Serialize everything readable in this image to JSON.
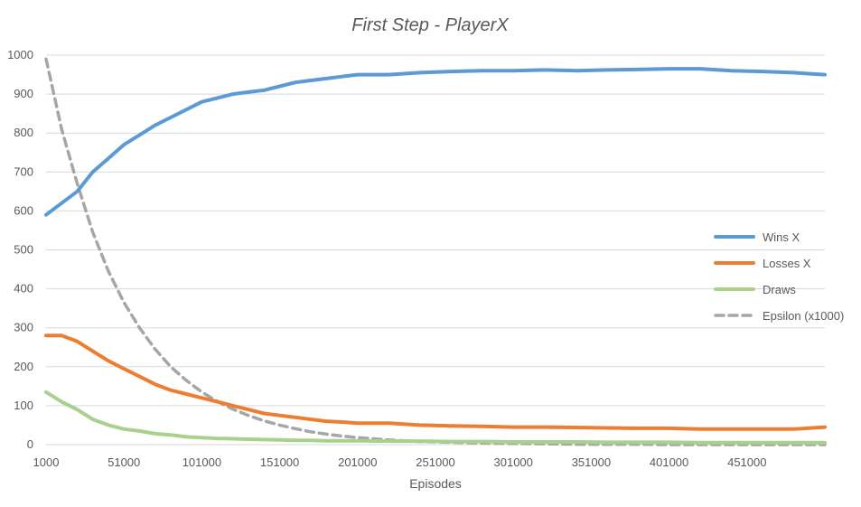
{
  "chart_data": {
    "type": "line",
    "title": "First Step - PlayerX",
    "xlabel": "Episodes",
    "ylabel": "",
    "xlim": [
      1000,
      501000
    ],
    "ylim": [
      0,
      1000
    ],
    "yticks": [
      0,
      100,
      200,
      300,
      400,
      500,
      600,
      700,
      800,
      900,
      1000
    ],
    "xticks": [
      1000,
      51000,
      101000,
      151000,
      201000,
      251000,
      301000,
      351000,
      401000,
      451000
    ],
    "x_tick_labels": [
      "1000",
      "51000",
      "101000",
      "151000",
      "201000",
      "251000",
      "301000",
      "351000",
      "401000",
      "451000"
    ],
    "y_tick_labels": [
      "0",
      "100",
      "200",
      "300",
      "400",
      "500",
      "600",
      "700",
      "800",
      "900",
      "1000"
    ],
    "grid": "horizontal",
    "legend_position": "right",
    "x": [
      1000,
      11000,
      21000,
      31000,
      41000,
      51000,
      61000,
      71000,
      81000,
      91000,
      101000,
      111000,
      121000,
      131000,
      141000,
      151000,
      161000,
      171000,
      181000,
      191000,
      201000,
      221000,
      241000,
      261000,
      281000,
      301000,
      321000,
      341000,
      361000,
      381000,
      401000,
      421000,
      441000,
      461000,
      481000,
      501000
    ],
    "series": [
      {
        "name": "Wins X",
        "color": "#5b9bd5",
        "dashed": false,
        "values": [
          590,
          620,
          650,
          700,
          735,
          770,
          795,
          820,
          840,
          860,
          880,
          890,
          900,
          905,
          910,
          920,
          930,
          935,
          940,
          945,
          950,
          950,
          955,
          958,
          960,
          960,
          962,
          960,
          962,
          963,
          965,
          965,
          960,
          958,
          955,
          950
        ]
      },
      {
        "name": "Losses X",
        "color": "#ed7d31",
        "dashed": false,
        "values": [
          280,
          280,
          265,
          240,
          215,
          195,
          175,
          155,
          140,
          130,
          120,
          110,
          100,
          90,
          80,
          75,
          70,
          65,
          60,
          58,
          55,
          55,
          50,
          48,
          47,
          45,
          45,
          44,
          43,
          42,
          42,
          40,
          40,
          40,
          40,
          45
        ]
      },
      {
        "name": "Draws",
        "color": "#a9d18e",
        "dashed": false,
        "values": [
          135,
          110,
          90,
          65,
          50,
          40,
          35,
          28,
          25,
          20,
          18,
          16,
          15,
          14,
          13,
          12,
          11,
          11,
          10,
          10,
          10,
          9,
          9,
          8,
          8,
          7,
          7,
          7,
          6,
          6,
          6,
          5,
          5,
          5,
          5,
          5
        ]
      },
      {
        "name": "Epsilon (x1000)",
        "color": "#a6a6a6",
        "dashed": true,
        "values": [
          990,
          810,
          670,
          545,
          445,
          365,
          300,
          245,
          200,
          165,
          135,
          111,
          91,
          75,
          61,
          50,
          41,
          33,
          27,
          22,
          18,
          12,
          8,
          6,
          4,
          3,
          2,
          1,
          1,
          1,
          0,
          0,
          0,
          0,
          0,
          0
        ]
      }
    ]
  }
}
